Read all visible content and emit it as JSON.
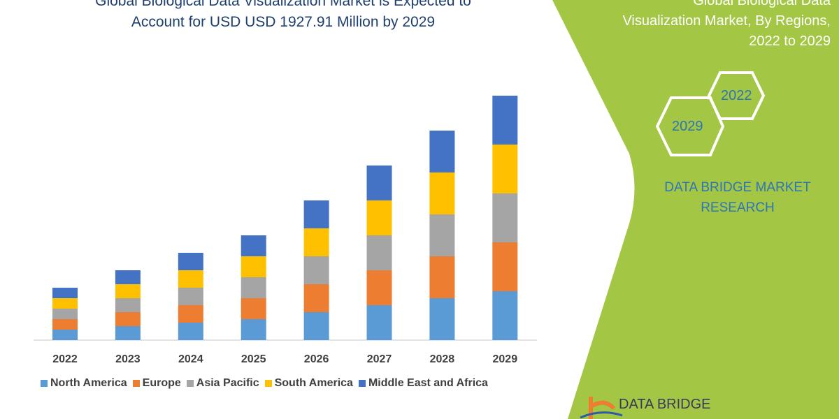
{
  "title": {
    "line1": "Global Biological Data Visualization Market is Expected to",
    "line2": "Account for USD USD 1927.91 Million by 2029"
  },
  "side_panel": {
    "title_lines": [
      "Global Biological Data",
      "Visualization Market, By Regions,",
      "2022 to 2029"
    ],
    "hex_a": "2022",
    "hex_b": "2029",
    "brand_lines": [
      "DATA BRIDGE MARKET",
      "RESEARCH"
    ],
    "logo_text": "DATA BRIDGE",
    "color": "#a3c644"
  },
  "chart_data": {
    "type": "bar",
    "stacked": true,
    "categories": [
      "2022",
      "2023",
      "2024",
      "2025",
      "2026",
      "2027",
      "2028",
      "2029"
    ],
    "series": [
      {
        "name": "North America",
        "color": "#5b9bd5",
        "values": [
          15,
          20,
          25,
          30,
          40,
          50,
          60,
          70
        ]
      },
      {
        "name": "Europe",
        "color": "#ed7d31",
        "values": [
          15,
          20,
          25,
          30,
          40,
          50,
          60,
          70
        ]
      },
      {
        "name": "Asia Pacific",
        "color": "#a5a5a5",
        "values": [
          15,
          20,
          25,
          30,
          40,
          50,
          60,
          70
        ]
      },
      {
        "name": "South America",
        "color": "#ffc000",
        "values": [
          15,
          20,
          25,
          30,
          40,
          50,
          60,
          70
        ]
      },
      {
        "name": "Middle East and Africa",
        "color": "#4472c4",
        "values": [
          15,
          20,
          25,
          30,
          40,
          50,
          60,
          70
        ]
      }
    ],
    "value_note_units": "relative (no y-axis shown)",
    "grid": false,
    "legend_position": "bottom"
  }
}
